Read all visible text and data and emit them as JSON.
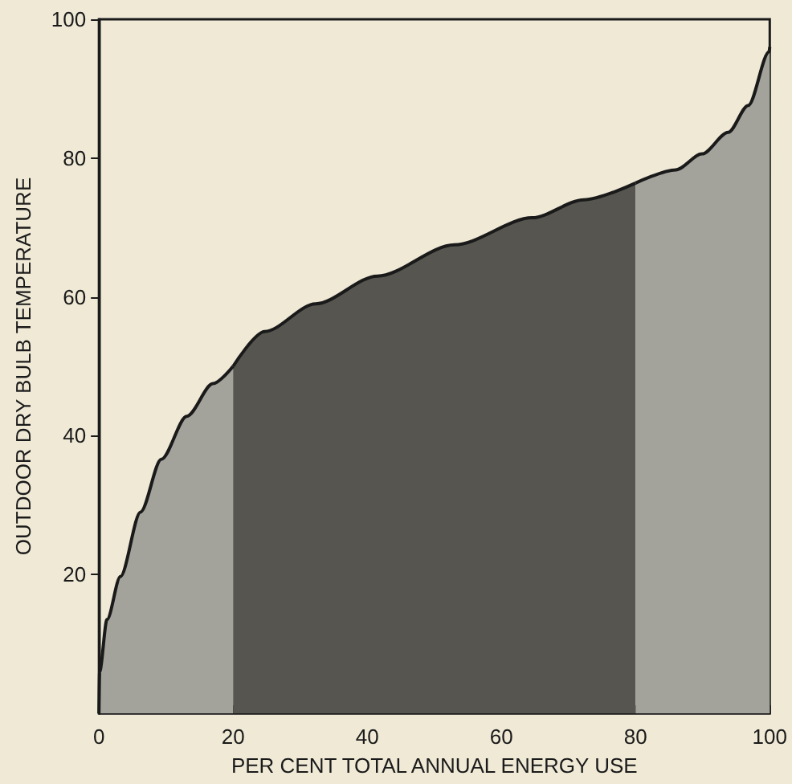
{
  "chart_data": {
    "type": "area",
    "xlabel": "PER CENT TOTAL ANNUAL ENERGY USE",
    "ylabel": "OUTDOOR DRY BULB TEMPERATURE",
    "xlim": [
      0,
      100
    ],
    "ylim": [
      0,
      100
    ],
    "xticks": [
      0,
      20,
      40,
      60,
      80,
      100
    ],
    "yticks": [
      20,
      40,
      60,
      80,
      100
    ],
    "grid": false,
    "series": [
      {
        "color": "#a3a29b",
        "x": [
          0,
          0.1,
          1.2,
          3.2,
          6.2,
          9.3,
          13.1,
          17,
          20
        ],
        "values": [
          0,
          6,
          13.5,
          19.7,
          29,
          36.6,
          42.8,
          47.5,
          50
        ]
      },
      {
        "color": "#56554f",
        "x": [
          20,
          24.7,
          32.3,
          41.5,
          53,
          64.6,
          72.3,
          80
        ],
        "values": [
          50,
          55,
          59,
          63,
          67.5,
          71.4,
          74,
          76.4
        ]
      },
      {
        "color": "#a3a29b",
        "x": [
          80,
          86,
          89.9,
          93.8,
          96.8,
          99.9,
          100
        ],
        "values": [
          76.4,
          78.3,
          80.6,
          83.7,
          87.6,
          95.3,
          96
        ]
      }
    ]
  }
}
